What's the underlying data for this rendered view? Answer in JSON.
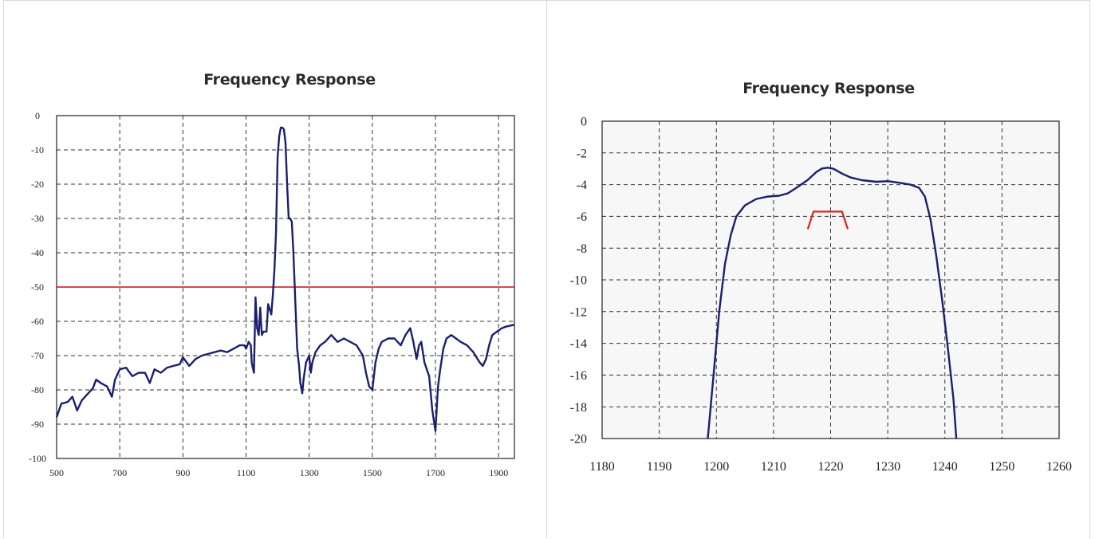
{
  "chart_data": [
    {
      "type": "line",
      "title": "Frequency Response",
      "xlabel": "",
      "ylabel": "",
      "xlim": [
        500,
        1950
      ],
      "ylim": [
        -100,
        0
      ],
      "x_ticks": [
        "500",
        "700",
        "900",
        "1100",
        "1300",
        "1500",
        "1700",
        "1900"
      ],
      "y_ticks": [
        "0",
        "-10",
        "-20",
        "-30",
        "-40",
        "-50",
        "-60",
        "-70",
        "-80",
        "-90",
        "-100"
      ],
      "grid": true,
      "line_color": "#1a1f6e",
      "ref_color": "#cc1111",
      "reference_line": {
        "y": -50
      },
      "series": [
        {
          "values": [
            [
              500,
              -88
            ],
            [
              515,
              -84
            ],
            [
              535,
              -83.5
            ],
            [
              550,
              -82
            ],
            [
              565,
              -86
            ],
            [
              580,
              -83
            ],
            [
              600,
              -81
            ],
            [
              615,
              -79.5
            ],
            [
              625,
              -77
            ],
            [
              640,
              -78
            ],
            [
              660,
              -79
            ],
            [
              675,
              -82
            ],
            [
              685,
              -77
            ],
            [
              700,
              -74
            ],
            [
              720,
              -73.5
            ],
            [
              740,
              -76
            ],
            [
              760,
              -75
            ],
            [
              780,
              -75
            ],
            [
              795,
              -78
            ],
            [
              810,
              -74
            ],
            [
              830,
              -75
            ],
            [
              850,
              -73.5
            ],
            [
              870,
              -73
            ],
            [
              890,
              -72.5
            ],
            [
              900,
              -70.5
            ],
            [
              920,
              -73
            ],
            [
              940,
              -71
            ],
            [
              960,
              -70
            ],
            [
              980,
              -69.5
            ],
            [
              1000,
              -69
            ],
            [
              1020,
              -68.5
            ],
            [
              1040,
              -69
            ],
            [
              1060,
              -68
            ],
            [
              1080,
              -67
            ],
            [
              1095,
              -67
            ],
            [
              1100,
              -68
            ],
            [
              1108,
              -66
            ],
            [
              1115,
              -67
            ],
            [
              1118,
              -72
            ],
            [
              1125,
              -75
            ],
            [
              1130,
              -53
            ],
            [
              1135,
              -62
            ],
            [
              1140,
              -64
            ],
            [
              1145,
              -56
            ],
            [
              1150,
              -64
            ],
            [
              1155,
              -63
            ],
            [
              1165,
              -63
            ],
            [
              1170,
              -55
            ],
            [
              1180,
              -58
            ],
            [
              1185,
              -52
            ],
            [
              1190,
              -45
            ],
            [
              1195,
              -34
            ],
            [
              1200,
              -12
            ],
            [
              1205,
              -6
            ],
            [
              1210,
              -3.5
            ],
            [
              1215,
              -3.5
            ],
            [
              1220,
              -4
            ],
            [
              1225,
              -8
            ],
            [
              1230,
              -20
            ],
            [
              1235,
              -30
            ],
            [
              1240,
              -30
            ],
            [
              1245,
              -31
            ],
            [
              1250,
              -40
            ],
            [
              1255,
              -52
            ],
            [
              1262,
              -68
            ],
            [
              1268,
              -73
            ],
            [
              1272,
              -78
            ],
            [
              1278,
              -81
            ],
            [
              1282,
              -77
            ],
            [
              1290,
              -72
            ],
            [
              1300,
              -70
            ],
            [
              1305,
              -75
            ],
            [
              1310,
              -72
            ],
            [
              1320,
              -69
            ],
            [
              1335,
              -67
            ],
            [
              1350,
              -66
            ],
            [
              1370,
              -64
            ],
            [
              1390,
              -66
            ],
            [
              1410,
              -65
            ],
            [
              1430,
              -66
            ],
            [
              1450,
              -67
            ],
            [
              1470,
              -70
            ],
            [
              1480,
              -75
            ],
            [
              1490,
              -79
            ],
            [
              1500,
              -80
            ],
            [
              1510,
              -72
            ],
            [
              1520,
              -68
            ],
            [
              1530,
              -66
            ],
            [
              1550,
              -65
            ],
            [
              1570,
              -65
            ],
            [
              1590,
              -67
            ],
            [
              1605,
              -64
            ],
            [
              1620,
              -62
            ],
            [
              1630,
              -66
            ],
            [
              1640,
              -71
            ],
            [
              1648,
              -67
            ],
            [
              1655,
              -66
            ],
            [
              1665,
              -72
            ],
            [
              1680,
              -76
            ],
            [
              1690,
              -86
            ],
            [
              1700,
              -92
            ],
            [
              1708,
              -79
            ],
            [
              1715,
              -74
            ],
            [
              1725,
              -68
            ],
            [
              1735,
              -65
            ],
            [
              1750,
              -64
            ],
            [
              1765,
              -65
            ],
            [
              1780,
              -66
            ],
            [
              1800,
              -67
            ],
            [
              1820,
              -69
            ],
            [
              1840,
              -72
            ],
            [
              1850,
              -73
            ],
            [
              1860,
              -71
            ],
            [
              1870,
              -67
            ],
            [
              1880,
              -64
            ],
            [
              1895,
              -63
            ],
            [
              1910,
              -62
            ],
            [
              1925,
              -61.5
            ],
            [
              1950,
              -61
            ]
          ]
        }
      ]
    },
    {
      "type": "line",
      "title": "Frequency Response",
      "xlabel": "",
      "ylabel": "",
      "xlim": [
        1180,
        1260
      ],
      "ylim": [
        -20,
        0
      ],
      "x_ticks": [
        "1180",
        "1190",
        "1200",
        "1210",
        "1220",
        "1230",
        "1240",
        "1250",
        "1260"
      ],
      "y_ticks": [
        "0",
        "-2",
        "-4",
        "-6",
        "-8",
        "-10",
        "-12",
        "-14",
        "-16",
        "-18",
        "-20"
      ],
      "grid": true,
      "line_color": "#1a1f6e",
      "ref_color": "#e02020",
      "mask": [
        [
          1216,
          -6.8
        ],
        [
          1217,
          -5.7
        ],
        [
          1222,
          -5.7
        ],
        [
          1223,
          -6.8
        ]
      ],
      "series": [
        {
          "values": [
            [
              1198.5,
              -20
            ],
            [
              1199.5,
              -16
            ],
            [
              1200.5,
              -12
            ],
            [
              1201.5,
              -9
            ],
            [
              1202.5,
              -7.2
            ],
            [
              1203.5,
              -6
            ],
            [
              1205,
              -5.3
            ],
            [
              1207,
              -4.9
            ],
            [
              1209,
              -4.75
            ],
            [
              1211,
              -4.7
            ],
            [
              1212.5,
              -4.55
            ],
            [
              1214,
              -4.2
            ],
            [
              1216,
              -3.7
            ],
            [
              1217.5,
              -3.2
            ],
            [
              1218.5,
              -2.98
            ],
            [
              1219.5,
              -2.93
            ],
            [
              1220.5,
              -3.0
            ],
            [
              1222,
              -3.3
            ],
            [
              1223.5,
              -3.55
            ],
            [
              1225.5,
              -3.72
            ],
            [
              1228,
              -3.82
            ],
            [
              1230,
              -3.78
            ],
            [
              1232,
              -3.88
            ],
            [
              1234,
              -4.0
            ],
            [
              1235.5,
              -4.2
            ],
            [
              1236.5,
              -4.75
            ],
            [
              1237.5,
              -6.2
            ],
            [
              1238.5,
              -8.5
            ],
            [
              1239.5,
              -11.2
            ],
            [
              1240.5,
              -14.2
            ],
            [
              1241.5,
              -17.5
            ],
            [
              1242,
              -20
            ]
          ]
        }
      ]
    }
  ]
}
